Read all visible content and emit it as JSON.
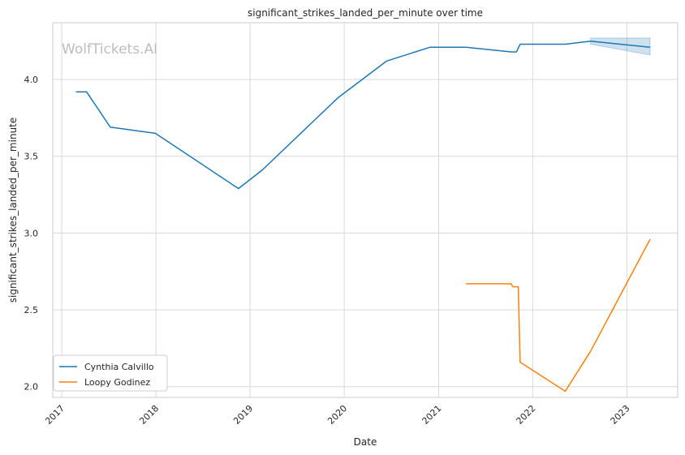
{
  "chart_data": {
    "type": "line",
    "title": "significant_strikes_landed_per_minute over time",
    "xlabel": "Date",
    "ylabel": "significant_strikes_landed_per_minute",
    "watermark": "WolfTickets.AI",
    "x_ticks": [
      "2017",
      "2018",
      "2019",
      "2020",
      "2021",
      "2022",
      "2023"
    ],
    "y_ticks": [
      "2.0",
      "2.5",
      "3.0",
      "3.5",
      "4.0"
    ],
    "xlim": [
      "2016-11-27",
      "2023-07-17"
    ],
    "ylim": [
      1.93,
      4.37
    ],
    "grid": true,
    "legend_position": "lower-left",
    "series": [
      {
        "name": "Cynthia Calvillo",
        "color": "#1f77b4",
        "points": [
          {
            "x": "2017-02-25",
            "y": 3.92
          },
          {
            "x": "2017-04-07",
            "y": 3.92
          },
          {
            "x": "2017-07-08",
            "y": 3.69
          },
          {
            "x": "2017-12-30",
            "y": 3.65
          },
          {
            "x": "2018-11-17",
            "y": 3.29
          },
          {
            "x": "2019-02-17",
            "y": 3.41
          },
          {
            "x": "2019-12-07",
            "y": 3.88
          },
          {
            "x": "2020-06-13",
            "y": 4.12
          },
          {
            "x": "2020-11-28",
            "y": 4.21
          },
          {
            "x": "2021-04-17",
            "y": 4.21
          },
          {
            "x": "2021-10-09",
            "y": 4.18
          },
          {
            "x": "2021-10-30",
            "y": 4.18
          },
          {
            "x": "2021-11-13",
            "y": 4.23
          },
          {
            "x": "2022-05-07",
            "y": 4.23
          },
          {
            "x": "2022-08-13",
            "y": 4.25
          },
          {
            "x": "2023-04-01",
            "y": 4.21
          }
        ],
        "band": [
          {
            "x": "2022-08-13",
            "lower": 4.23,
            "upper": 4.27
          },
          {
            "x": "2023-04-01",
            "lower": 4.16,
            "upper": 4.27
          }
        ]
      },
      {
        "name": "Loopy Godinez",
        "color": "#ff7f0e",
        "points": [
          {
            "x": "2021-04-17",
            "y": 2.67
          },
          {
            "x": "2021-10-09",
            "y": 2.67
          },
          {
            "x": "2021-10-16",
            "y": 2.65
          },
          {
            "x": "2021-11-06",
            "y": 2.65
          },
          {
            "x": "2021-11-13",
            "y": 2.16
          },
          {
            "x": "2022-05-07",
            "y": 1.97
          },
          {
            "x": "2022-08-13",
            "y": 2.23
          },
          {
            "x": "2023-04-01",
            "y": 2.96
          }
        ]
      }
    ]
  }
}
